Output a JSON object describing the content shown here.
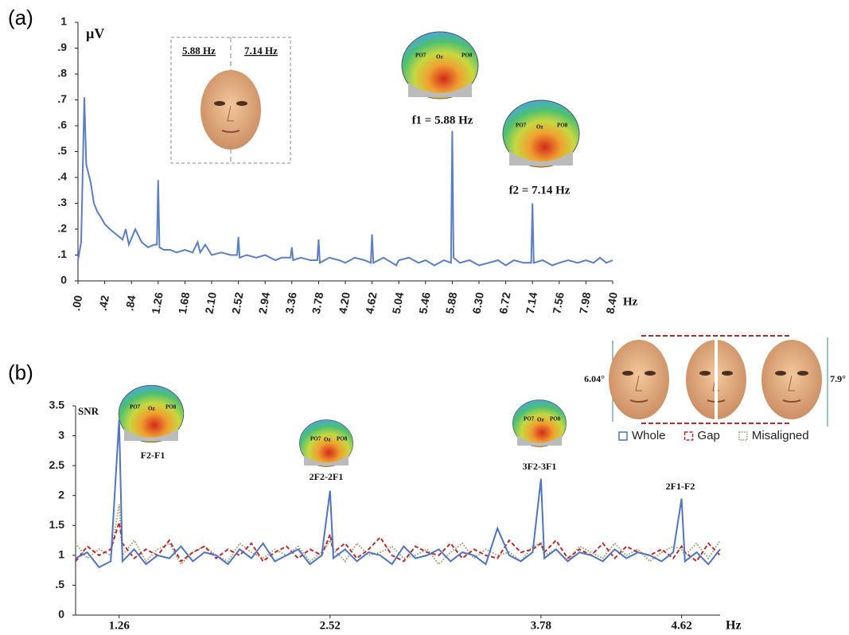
{
  "electrodes": [
    "PO7",
    "Oz",
    "PO8"
  ],
  "chart_data": [
    {
      "type": "line",
      "panel": "(a)",
      "ylabel": "µV",
      "xlabel": "Hz",
      "xlim": [
        0,
        8.4
      ],
      "ylim": [
        0,
        1
      ],
      "xticks": [
        {
          "value": 0,
          "label": ".00"
        },
        {
          "value": 0.42,
          "label": ".42"
        },
        {
          "value": 0.84,
          "label": ".84"
        },
        {
          "value": 1.26,
          "label": "1.26",
          "color": "#4f74c4"
        },
        {
          "value": 1.68,
          "label": "1.68"
        },
        {
          "value": 2.1,
          "label": "2.10"
        },
        {
          "value": 2.52,
          "label": "2.52",
          "color": "#4f74c4"
        },
        {
          "value": 2.94,
          "label": "2.94"
        },
        {
          "value": 3.36,
          "label": "3.36"
        },
        {
          "value": 3.78,
          "label": "3.78",
          "color": "#4f74c4"
        },
        {
          "value": 4.2,
          "label": "4.20"
        },
        {
          "value": 4.62,
          "label": "4.62",
          "color": "#4f74c4"
        },
        {
          "value": 5.04,
          "label": "5.04"
        },
        {
          "value": 5.46,
          "label": "5.46"
        },
        {
          "value": 5.88,
          "label": "5.88",
          "color": "#4f74c4"
        },
        {
          "value": 6.3,
          "label": "6.30"
        },
        {
          "value": 6.72,
          "label": "6.72"
        },
        {
          "value": 7.14,
          "label": "7.14",
          "color": "#4f74c4"
        },
        {
          "value": 7.56,
          "label": "7.56"
        },
        {
          "value": 7.98,
          "label": "7.98"
        },
        {
          "value": 8.4,
          "label": "8.40"
        }
      ],
      "yticks": [
        0,
        {
          "value": 0.1,
          "label": ".1"
        },
        {
          "value": 0.2,
          "label": ".2"
        },
        {
          "value": 0.3,
          "label": ".3"
        },
        {
          "value": 0.4,
          "label": ".4"
        },
        {
          "value": 0.5,
          "label": ".5"
        },
        {
          "value": 0.6,
          "label": ".6"
        },
        {
          "value": 0.7,
          "label": ".7"
        },
        {
          "value": 0.8,
          "label": ".8"
        },
        {
          "value": 0.9,
          "label": ".9"
        },
        1
      ],
      "x": [
        0,
        0.05,
        0.1,
        0.13,
        0.16,
        0.2,
        0.25,
        0.3,
        0.35,
        0.42,
        0.5,
        0.6,
        0.7,
        0.75,
        0.8,
        0.9,
        1.0,
        1.1,
        1.2,
        1.24,
        1.26,
        1.28,
        1.35,
        1.45,
        1.55,
        1.68,
        1.8,
        1.88,
        1.92,
        2.0,
        2.1,
        2.25,
        2.4,
        2.5,
        2.52,
        2.54,
        2.65,
        2.8,
        2.94,
        3.1,
        3.2,
        3.34,
        3.36,
        3.38,
        3.5,
        3.65,
        3.76,
        3.78,
        3.8,
        3.95,
        4.1,
        4.2,
        4.35,
        4.5,
        4.6,
        4.62,
        4.64,
        4.8,
        5.0,
        5.04,
        5.2,
        5.35,
        5.46,
        5.6,
        5.75,
        5.86,
        5.88,
        5.9,
        6.0,
        6.15,
        6.3,
        6.45,
        6.6,
        6.72,
        6.85,
        7.0,
        7.12,
        7.14,
        7.16,
        7.3,
        7.45,
        7.56,
        7.7,
        7.85,
        7.98,
        8.1,
        8.2,
        8.3,
        8.4
      ],
      "values": [
        0.08,
        0.15,
        0.71,
        0.45,
        0.42,
        0.38,
        0.3,
        0.27,
        0.25,
        0.22,
        0.2,
        0.18,
        0.16,
        0.2,
        0.14,
        0.2,
        0.15,
        0.13,
        0.14,
        0.14,
        0.39,
        0.13,
        0.12,
        0.12,
        0.11,
        0.12,
        0.11,
        0.15,
        0.11,
        0.14,
        0.1,
        0.11,
        0.1,
        0.1,
        0.17,
        0.09,
        0.1,
        0.09,
        0.1,
        0.08,
        0.09,
        0.09,
        0.13,
        0.08,
        0.09,
        0.08,
        0.08,
        0.16,
        0.07,
        0.09,
        0.08,
        0.07,
        0.09,
        0.08,
        0.07,
        0.18,
        0.07,
        0.09,
        0.06,
        0.08,
        0.09,
        0.07,
        0.08,
        0.06,
        0.08,
        0.07,
        0.58,
        0.09,
        0.07,
        0.08,
        0.06,
        0.07,
        0.08,
        0.06,
        0.08,
        0.07,
        0.07,
        0.3,
        0.07,
        0.08,
        0.06,
        0.07,
        0.08,
        0.07,
        0.08,
        0.07,
        0.09,
        0.07,
        0.08
      ],
      "color": "#5b7ec8",
      "annotations": [
        "5.88 Hz",
        "7.14 Hz",
        "f1 = 5.88 Hz",
        "f2 = 7.14 Hz"
      ]
    },
    {
      "type": "line",
      "panel": "(b)",
      "ylabel": "SNR",
      "xlabel": "Hz",
      "xlim": [
        1.0,
        4.85
      ],
      "ylim": [
        0,
        3.5
      ],
      "xticks": [
        {
          "value": 1.26,
          "label": "1.26",
          "color": "#4f74c4"
        },
        {
          "value": 2.52,
          "label": "2.52",
          "color": "#4f74c4"
        },
        {
          "value": 3.78,
          "label": "3.78",
          "color": "#4f74c4"
        },
        {
          "value": 4.62,
          "label": "4.62",
          "color": "#4f74c4"
        }
      ],
      "yticks": [
        0,
        {
          "value": 0.5,
          "label": ".5"
        },
        1,
        1.5,
        2,
        2.5,
        3,
        3.5
      ],
      "x": [
        1.0,
        1.07,
        1.14,
        1.21,
        1.26,
        1.28,
        1.35,
        1.42,
        1.49,
        1.56,
        1.63,
        1.7,
        1.77,
        1.84,
        1.91,
        1.98,
        2.05,
        2.12,
        2.19,
        2.26,
        2.33,
        2.4,
        2.47,
        2.52,
        2.54,
        2.61,
        2.68,
        2.75,
        2.82,
        2.89,
        2.96,
        3.03,
        3.1,
        3.17,
        3.24,
        3.31,
        3.38,
        3.45,
        3.52,
        3.59,
        3.66,
        3.73,
        3.78,
        3.8,
        3.87,
        3.94,
        4.01,
        4.08,
        4.15,
        4.22,
        4.29,
        4.36,
        4.43,
        4.5,
        4.57,
        4.62,
        4.64,
        4.71,
        4.78,
        4.85
      ],
      "series": [
        {
          "name": "Whole",
          "color": "#4f74c4",
          "style": "solid",
          "values": [
            0.95,
            1.05,
            0.8,
            0.9,
            3.27,
            0.9,
            1.1,
            0.85,
            1.0,
            0.95,
            1.15,
            0.9,
            1.05,
            1.0,
            0.85,
            1.1,
            0.95,
            1.2,
            0.9,
            1.0,
            1.1,
            0.85,
            1.0,
            2.08,
            0.95,
            1.1,
            0.9,
            1.05,
            1.0,
            0.85,
            1.15,
            0.95,
            1.0,
            1.1,
            0.9,
            1.05,
            1.0,
            0.85,
            1.45,
            1.0,
            0.9,
            1.05,
            2.28,
            0.95,
            1.1,
            0.9,
            1.05,
            1.0,
            0.9,
            1.1,
            0.95,
            1.05,
            1.0,
            0.9,
            1.05,
            1.95,
            0.9,
            1.05,
            0.85,
            1.1
          ]
        },
        {
          "name": "Gap",
          "color": "#c0282d",
          "style": "dashed",
          "values": [
            0.9,
            1.15,
            1.0,
            1.1,
            1.55,
            1.2,
            0.95,
            1.1,
            1.0,
            1.25,
            0.9,
            1.05,
            1.15,
            0.95,
            1.1,
            1.0,
            1.2,
            0.9,
            1.05,
            1.15,
            0.95,
            1.1,
            1.0,
            1.35,
            1.05,
            1.2,
            0.95,
            1.1,
            1.3,
            1.0,
            0.9,
            1.15,
            1.05,
            1.0,
            1.2,
            0.95,
            1.1,
            1.0,
            0.95,
            1.25,
            1.05,
            1.1,
            1.2,
            1.05,
            1.25,
            0.95,
            1.1,
            1.0,
            1.2,
            0.95,
            1.15,
            1.05,
            1.0,
            1.1,
            0.95,
            1.15,
            1.05,
            0.9,
            1.2,
            1.0
          ]
        },
        {
          "name": "Misaligned",
          "color": "#9aa060",
          "style": "dotted",
          "values": [
            1.2,
            0.95,
            1.1,
            1.0,
            1.85,
            1.0,
            1.25,
            0.9,
            1.1,
            1.2,
            0.85,
            1.05,
            1.15,
            1.0,
            0.9,
            1.2,
            1.05,
            0.95,
            1.1,
            1.0,
            1.15,
            0.9,
            1.05,
            1.25,
            1.1,
            0.9,
            1.2,
            1.0,
            1.05,
            1.15,
            0.95,
            1.0,
            1.1,
            0.85,
            1.05,
            1.2,
            0.95,
            1.1,
            1.0,
            1.05,
            0.9,
            1.15,
            1.2,
            1.0,
            1.1,
            0.9,
            1.15,
            1.05,
            0.95,
            1.2,
            1.0,
            1.1,
            0.9,
            1.05,
            1.15,
            1.1,
            1.0,
            1.2,
            0.95,
            1.25
          ]
        }
      ],
      "legend": "upper right",
      "annotations": [
        "F2-F1",
        "2F2-2F1",
        "3F2-3F1",
        "2F1-F2",
        "6.04°",
        "7.9°"
      ]
    }
  ]
}
